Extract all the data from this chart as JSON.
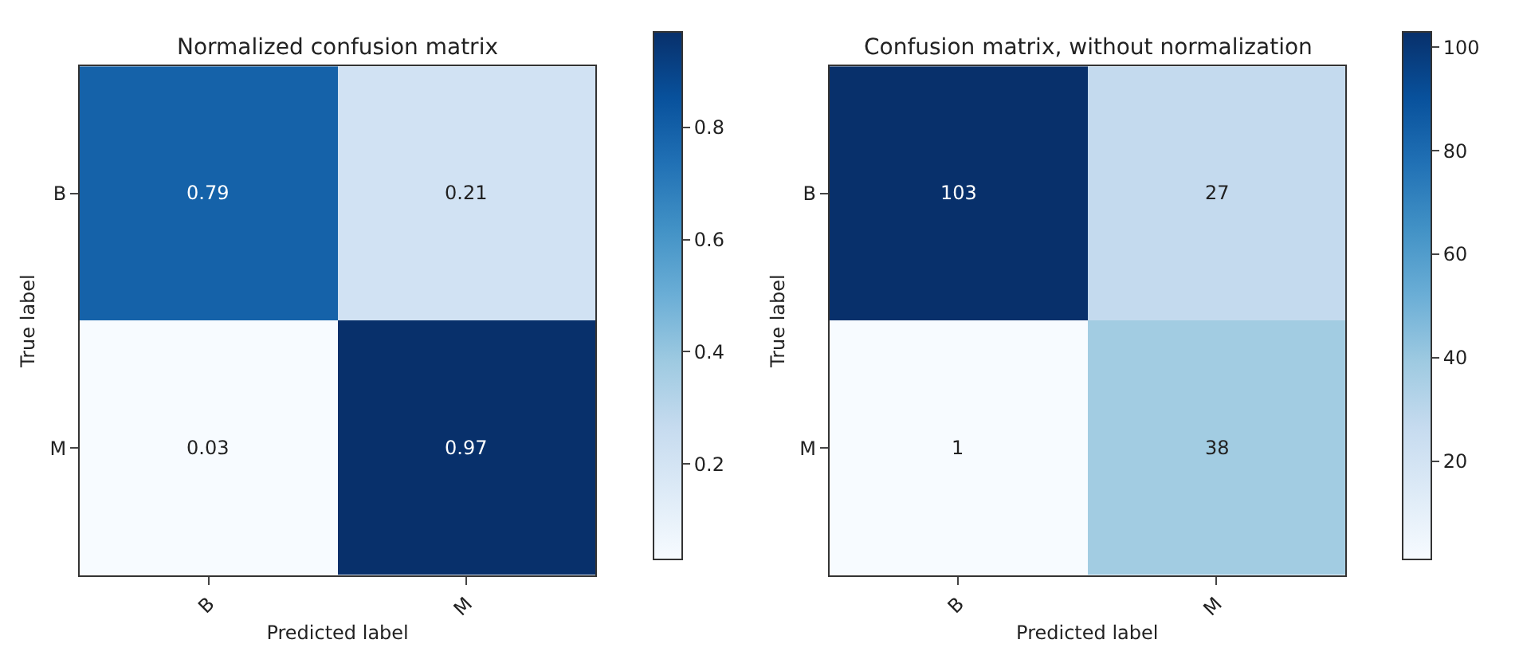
{
  "chart_data": [
    {
      "type": "heatmap",
      "title": "Normalized confusion matrix",
      "xlabel": "Predicted label",
      "ylabel": "True label",
      "categories": [
        "B",
        "M"
      ],
      "y_categories": [
        "B",
        "M"
      ],
      "cells": [
        [
          0.79,
          0.21
        ],
        [
          0.03,
          0.97
        ]
      ],
      "clim": [
        0.03,
        0.97
      ],
      "cticks": [
        0.2,
        0.4,
        0.6,
        0.8
      ],
      "data_labels": true
    },
    {
      "type": "heatmap",
      "title": "Confusion matrix, without normalization",
      "xlabel": "Predicted label",
      "ylabel": "True label",
      "categories": [
        "B",
        "M"
      ],
      "y_categories": [
        "B",
        "M"
      ],
      "cells": [
        [
          103,
          27
        ],
        [
          1,
          38
        ]
      ],
      "clim": [
        1,
        103
      ],
      "cticks": [
        20,
        40,
        60,
        80,
        100
      ],
      "data_labels": true
    }
  ]
}
